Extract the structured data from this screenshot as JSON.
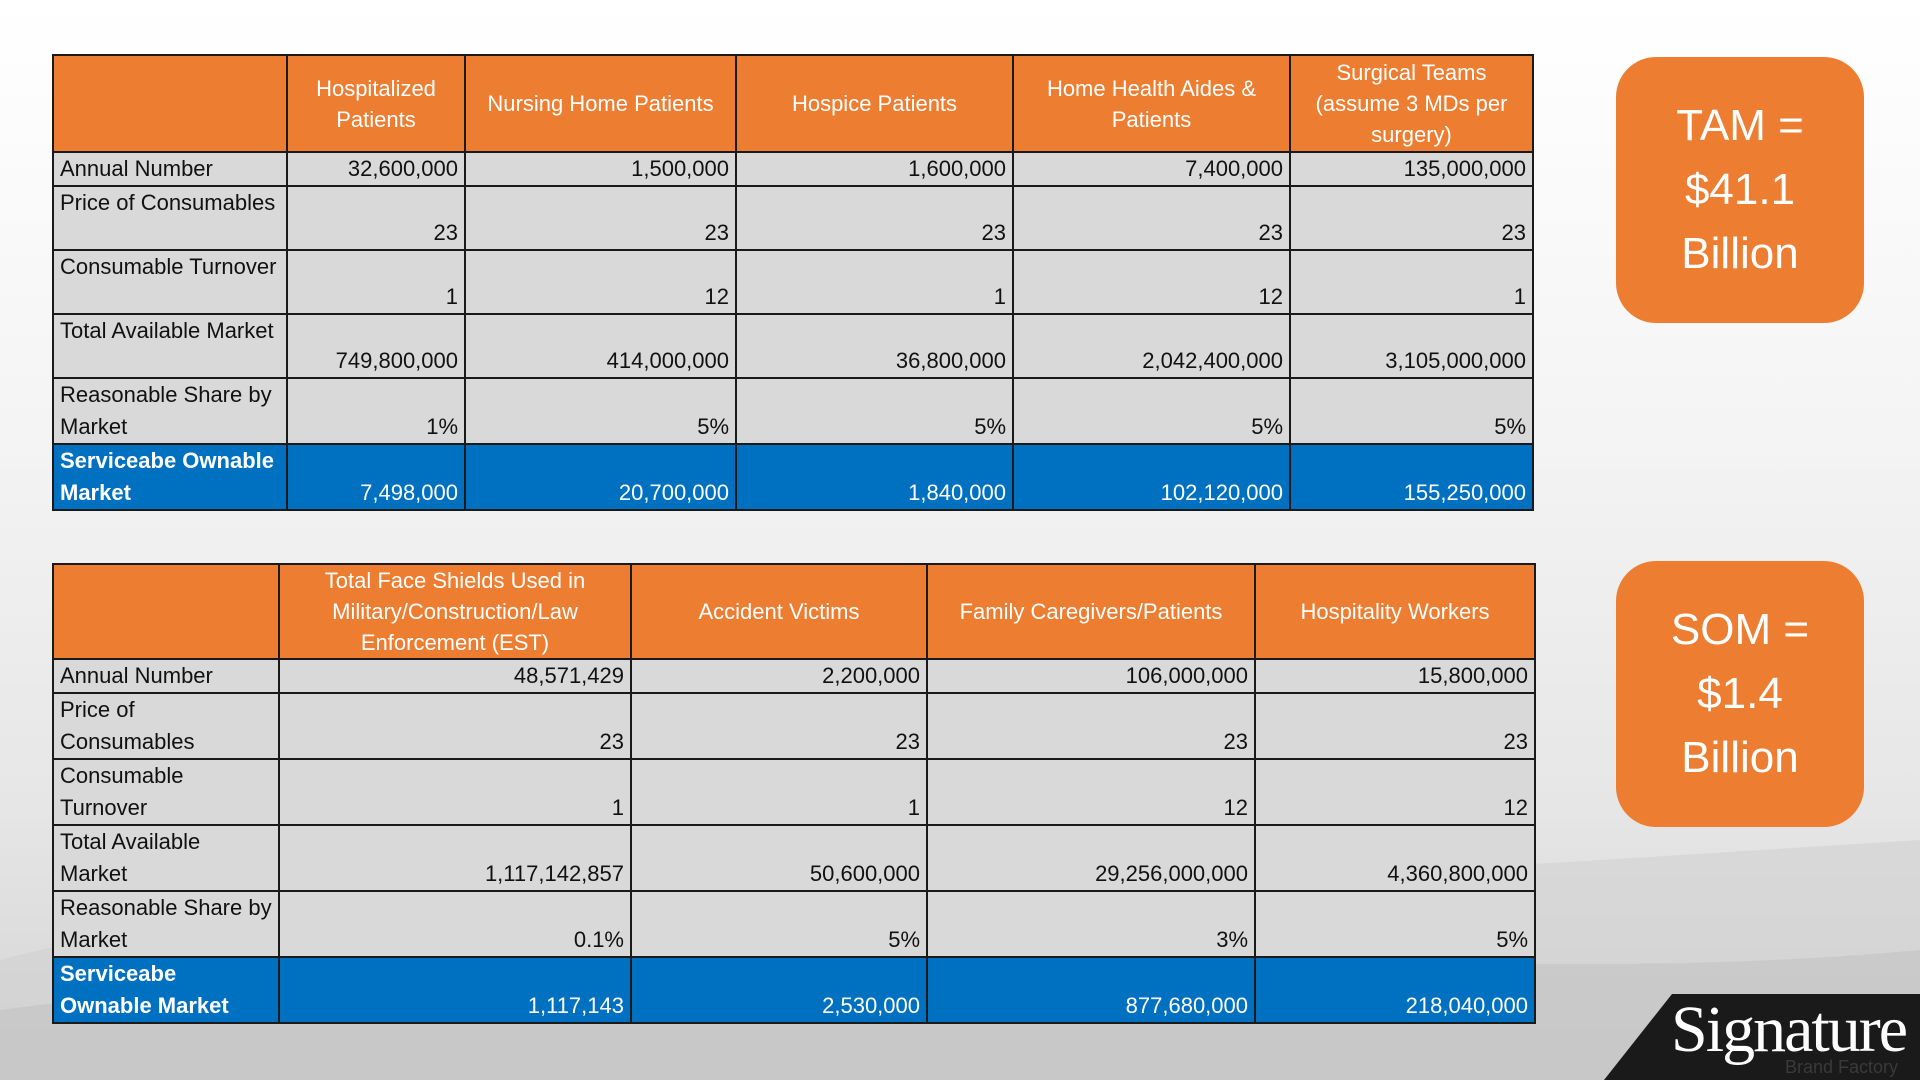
{
  "table1": {
    "headers": [
      "",
      "Hospitalized Patients",
      "Nursing Home Patients",
      "Hospice Patients",
      "Home Health Aides & Patients",
      "Surgical Teams (assume 3 MDs per surgery)"
    ],
    "rows": [
      {
        "label": "Annual Number",
        "values": [
          "32,600,000",
          "1,500,000",
          "1,600,000",
          "7,400,000",
          "135,000,000"
        ]
      },
      {
        "label": "Price of Consumables",
        "values": [
          "23",
          "23",
          "23",
          "23",
          "23"
        ]
      },
      {
        "label": "Consumable Turnover",
        "values": [
          "1",
          "12",
          "1",
          "12",
          "1"
        ]
      },
      {
        "label": "Total Available Market",
        "values": [
          "749,800,000",
          "414,000,000",
          "36,800,000",
          "2,042,400,000",
          "3,105,000,000"
        ]
      },
      {
        "label": "Reasonable Share by Market",
        "values": [
          "1%",
          "5%",
          "5%",
          "5%",
          "5%"
        ]
      },
      {
        "label": "Serviceabe Ownable Market",
        "values": [
          "7,498,000",
          "20,700,000",
          "1,840,000",
          "102,120,000",
          "155,250,000"
        ]
      }
    ]
  },
  "table2": {
    "headers": [
      "",
      "Total Face Shields Used in Military/Construction/Law Enforcement (EST)",
      "Accident Victims",
      "Family Caregivers/Patients",
      "Hospitality Workers"
    ],
    "rows": [
      {
        "label": "Annual Number",
        "values": [
          "48,571,429",
          "2,200,000",
          "106,000,000",
          "15,800,000"
        ]
      },
      {
        "label": "Price of Consumables",
        "values": [
          "23",
          "23",
          "23",
          "23"
        ]
      },
      {
        "label": "Consumable Turnover",
        "values": [
          "1",
          "1",
          "12",
          "12"
        ]
      },
      {
        "label": "Total Available Market",
        "values": [
          "1,117,142,857",
          "50,600,000",
          "29,256,000,000",
          "4,360,800,000"
        ]
      },
      {
        "label": "Reasonable Share by Market",
        "values": [
          "0.1%",
          "5%",
          "3%",
          "5%"
        ]
      },
      {
        "label": "Serviceabe Ownable Market",
        "values": [
          "1,117,143",
          "2,530,000",
          "877,680,000",
          "218,040,000"
        ]
      }
    ]
  },
  "tam_box": "TAM =\n$41.1\nBillion",
  "som_box": "SOM =\n$1.4\nBillion",
  "logo": {
    "name": "Signature",
    "sub": "Brand Factory"
  },
  "colors": {
    "header": "#ed7d31",
    "highlight": "#0070c0",
    "cell": "#d9d9d9"
  }
}
